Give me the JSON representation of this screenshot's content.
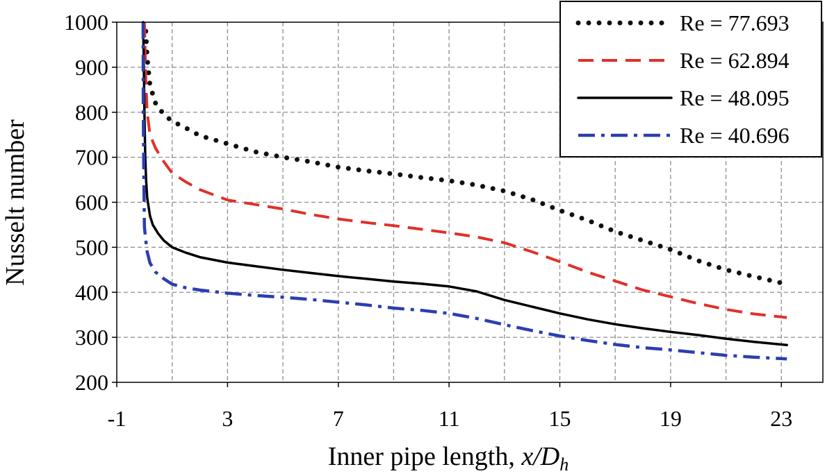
{
  "chart_data": {
    "type": "line",
    "xlabel": "Inner pipe length, ",
    "xlabel_italic": "x/D",
    "xlabel_sub": "h",
    "ylabel": "Nusselt number",
    "xlim": [
      -1,
      24.5
    ],
    "ylim": [
      200,
      1000
    ],
    "x_ticks": [
      -1,
      3,
      7,
      11,
      15,
      19,
      23
    ],
    "x_tick_labels": [
      "-1",
      "3",
      "7",
      "11",
      "15",
      "19",
      "23"
    ],
    "x_grid": [
      -1,
      1,
      3,
      5,
      7,
      9,
      11,
      13,
      15,
      17,
      19,
      21,
      23
    ],
    "y_ticks": [
      200,
      300,
      400,
      500,
      600,
      700,
      800,
      900,
      1000
    ],
    "y_tick_labels": [
      "200",
      "300",
      "400",
      "500",
      "600",
      "700",
      "800",
      "900",
      "1000"
    ],
    "grid": true,
    "legend_position": "top-right",
    "series": [
      {
        "name": "Re = 77.693",
        "style": "dotted",
        "color": "#111111",
        "x": [
          0.05,
          0.1,
          0.2,
          0.4,
          0.7,
          1,
          1.5,
          2,
          3,
          4,
          5,
          6,
          7,
          8,
          9,
          10,
          11,
          12,
          13,
          14,
          15,
          16,
          17,
          18,
          19,
          20,
          21,
          22,
          23.2
        ],
        "y": [
          980,
          920,
          860,
          820,
          795,
          780,
          765,
          748,
          730,
          712,
          700,
          690,
          678,
          670,
          663,
          655,
          648,
          638,
          625,
          606,
          582,
          560,
          535,
          515,
          495,
          470,
          450,
          435,
          418
        ]
      },
      {
        "name": "Re = 62.894",
        "style": "dashed",
        "color": "#e0302a",
        "x": [
          0,
          0.05,
          0.1,
          0.2,
          0.4,
          0.7,
          1,
          1.5,
          2,
          3,
          4,
          5,
          6,
          7,
          8,
          9,
          10,
          11,
          12,
          13,
          14,
          15,
          16,
          17,
          18,
          19,
          20,
          21,
          22,
          23.2
        ],
        "y": [
          1000,
          870,
          800,
          750,
          720,
          690,
          665,
          645,
          628,
          605,
          595,
          585,
          573,
          563,
          555,
          548,
          540,
          532,
          523,
          510,
          490,
          468,
          445,
          425,
          405,
          390,
          375,
          362,
          352,
          344
        ]
      },
      {
        "name": "Re = 48.095",
        "style": "solid",
        "color": "#000000",
        "x": [
          -0.05,
          -0.02,
          0,
          0.03,
          0.06,
          0.1,
          0.2,
          0.3,
          0.5,
          0.7,
          1,
          1.5,
          2,
          3,
          4,
          5,
          6,
          7,
          8,
          9,
          10,
          11,
          12,
          13,
          14,
          15,
          16,
          17,
          18,
          19,
          20,
          21,
          22,
          23.2
        ],
        "y": [
          1000,
          900,
          800,
          700,
          650,
          610,
          570,
          550,
          530,
          515,
          500,
          488,
          478,
          466,
          458,
          450,
          443,
          436,
          430,
          424,
          419,
          413,
          402,
          383,
          368,
          353,
          340,
          329,
          320,
          312,
          305,
          297,
          290,
          283
        ]
      },
      {
        "name": "Re = 40.696",
        "style": "dashdot",
        "color": "#2b3eb0",
        "x": [
          -0.05,
          -0.04,
          -0.02,
          0,
          0.05,
          0.1,
          0.2,
          0.4,
          0.7,
          1,
          1.5,
          2,
          3,
          4,
          5,
          6,
          7,
          8,
          9,
          10,
          11,
          12,
          13,
          14,
          15,
          16,
          17,
          18,
          19,
          20,
          21,
          22,
          23.2
        ],
        "y": [
          1000,
          800,
          650,
          545,
          515,
          490,
          465,
          445,
          430,
          418,
          410,
          405,
          398,
          393,
          389,
          384,
          378,
          372,
          365,
          360,
          353,
          342,
          328,
          315,
          303,
          293,
          284,
          277,
          272,
          266,
          260,
          256,
          252
        ]
      }
    ]
  }
}
